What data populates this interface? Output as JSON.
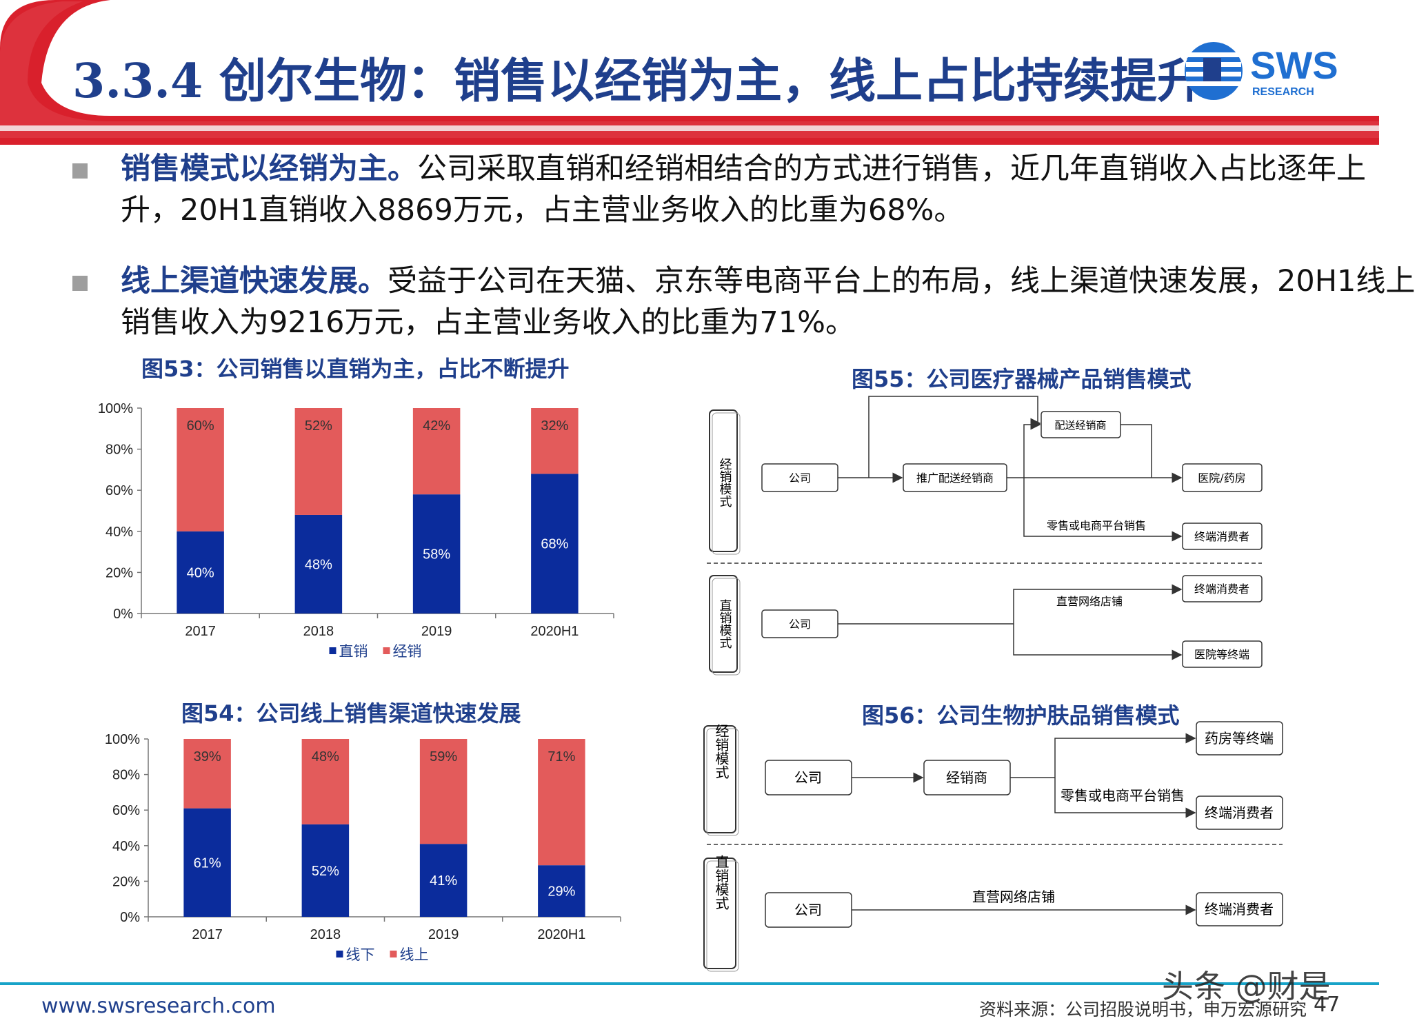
{
  "header": {
    "title": "3.3.4 创尔生物：销售以经销为主，线上占比持续提升"
  },
  "logo": {
    "text": "SWS",
    "subtext": "RESEARCH"
  },
  "bullets": [
    {
      "lead": "销售模式以经销为主。",
      "body": "公司采取直销和经销相结合的方式进行销售，近几年直销收入占比逐年上升，20H1直销收入8869万元，占主营业务收入的比重为68%。"
    },
    {
      "lead": "线上渠道快速发展。",
      "body": "受益于公司在天猫、京东等电商平台上的布局，线上渠道快速发展，20H1线上销售收入为9216万元，占主营业务收入的比重为71%。"
    }
  ],
  "fig53": {
    "title": "图53：公司销售以直销为主，占比不断提升"
  },
  "fig54": {
    "title": "图54：公司线上销售渠道快速发展"
  },
  "fig55": {
    "title": "图55：公司医疗器械产品销售模式",
    "group_top": "经销模式",
    "group_bottom": "直销模式",
    "company": "公司",
    "promo_distributor": "推广配送经销商",
    "delivery_distributor": "配送经销商",
    "hospital_pharmacy": "医院/药房",
    "retail_ecommerce": "零售或电商平台销售",
    "end_consumer": "终端消费者",
    "company2": "公司",
    "direct_network": "直营网络店铺",
    "end_consumer2": "终端消费者",
    "hospital_terminal": "医院等终端"
  },
  "fig56": {
    "title": "图56：公司生物护肤品销售模式",
    "group_top": "经销模式",
    "group_bottom": "直销模式",
    "company": "公司",
    "distributor": "经销商",
    "pharmacy_terminal": "药房等终端",
    "retail_ecommerce": "零售或电商平台销售",
    "end_consumer": "终端消费者",
    "company2": "公司",
    "direct_network": "直营网络店铺",
    "end_consumer2": "终端消费者"
  },
  "chart_data": [
    {
      "type": "bar",
      "stacked": true,
      "categories": [
        "2017",
        "2018",
        "2019",
        "2020H1"
      ],
      "series": [
        {
          "name": "直销",
          "values": [
            40,
            48,
            58,
            68
          ],
          "labels": [
            "40%",
            "48%",
            "58%",
            "68%"
          ],
          "color": "#0b2c9c"
        },
        {
          "name": "经销",
          "values": [
            60,
            52,
            42,
            32
          ],
          "labels": [
            "60%",
            "52%",
            "42%",
            "32%"
          ],
          "color": "#e35b5b"
        }
      ],
      "yticks": [
        "0%",
        "20%",
        "40%",
        "60%",
        "80%",
        "100%"
      ],
      "ylim": [
        0,
        100
      ],
      "legend": "bottom"
    },
    {
      "type": "bar",
      "stacked": true,
      "categories": [
        "2017",
        "2018",
        "2019",
        "2020H1"
      ],
      "series": [
        {
          "name": "线下",
          "values": [
            61,
            52,
            41,
            29
          ],
          "labels": [
            "61%",
            "52%",
            "41%",
            "29%"
          ],
          "color": "#0b2c9c"
        },
        {
          "name": "线上",
          "values": [
            39,
            48,
            59,
            71
          ],
          "labels": [
            "39%",
            "48%",
            "59%",
            "71%"
          ],
          "color": "#e35b5b"
        }
      ],
      "yticks": [
        "0%",
        "20%",
        "40%",
        "60%",
        "80%",
        "100%"
      ],
      "ylim": [
        0,
        100
      ],
      "legend": "bottom"
    }
  ],
  "footer": {
    "url": "www.swsresearch.com",
    "source": "资料来源：公司招股说明书，申万宏源研究",
    "page": "47",
    "watermark": "头条 @财是"
  },
  "colors": {
    "brand_blue": "#1f3f8c",
    "accent_red": "#d9202c",
    "bar_blue": "#0b2c9c",
    "bar_red": "#e35b5b",
    "footer_line": "#17a3c8"
  }
}
